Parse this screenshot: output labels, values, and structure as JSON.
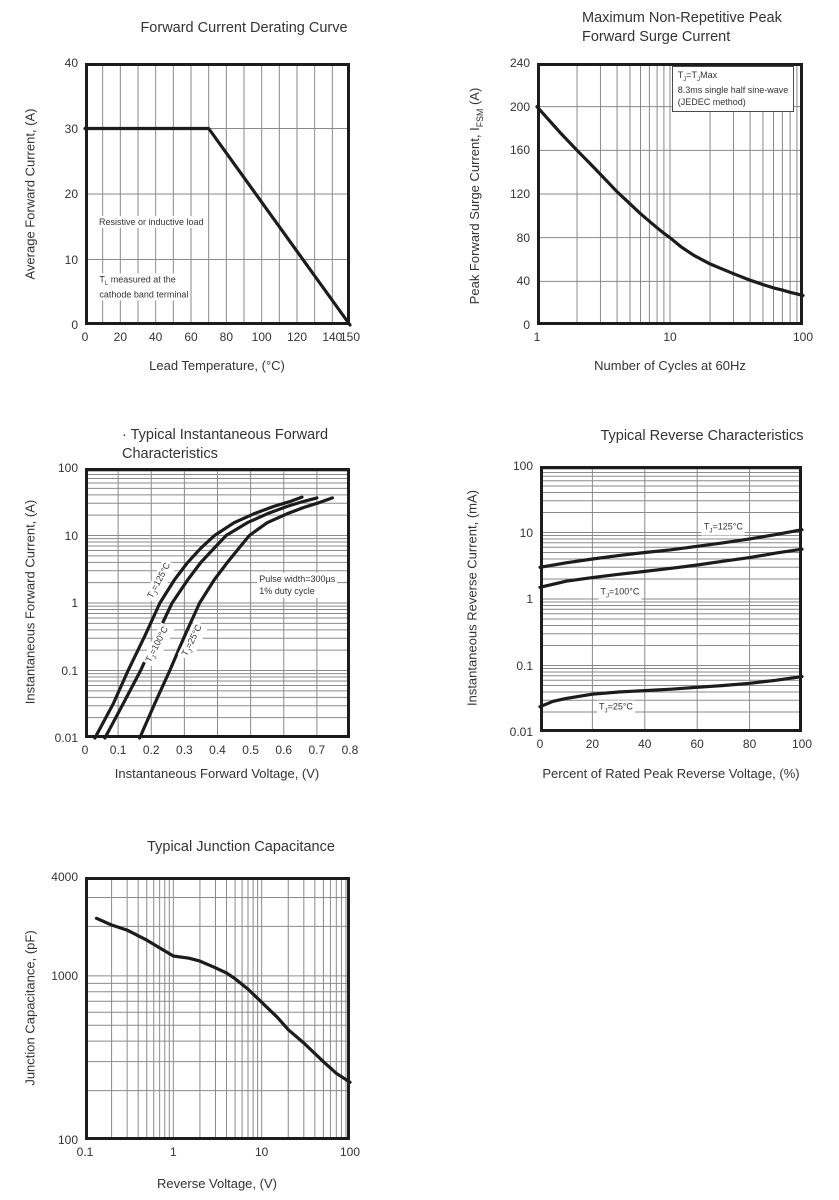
{
  "style": {
    "curve_color": "#1c1c1c",
    "border_color": "#1c1c1c",
    "grid_color": "#8a8a8a",
    "text_color": "#333333",
    "background": "#ffffff"
  },
  "chart_data": [
    {
      "type": "line",
      "title": "Forward Current Derating Curve",
      "xlabel": "Lead Temperature, (°C)",
      "ylabel": "Average Forward Current, (A)",
      "x_axis": {
        "type": "linear",
        "min": 0,
        "max": 150,
        "grid_step": 10,
        "ticks": [
          {
            "v": 0,
            "label": "0"
          },
          {
            "v": 20,
            "label": "20"
          },
          {
            "v": 40,
            "label": "40"
          },
          {
            "v": 60,
            "label": "60"
          },
          {
            "v": 80,
            "label": "80"
          },
          {
            "v": 100,
            "label": "100"
          },
          {
            "v": 120,
            "label": "120"
          },
          {
            "v": 140,
            "label": "140"
          },
          {
            "v": 150,
            "label": "150"
          }
        ]
      },
      "y_axis": {
        "type": "linear",
        "min": 0,
        "max": 40,
        "grid_step": 10,
        "ticks": [
          {
            "v": 40,
            "label": "40"
          },
          {
            "v": 30,
            "label": "30"
          },
          {
            "v": 20,
            "label": "20"
          },
          {
            "v": 10,
            "label": "10"
          },
          {
            "v": 0,
            "label": "0"
          }
        ]
      },
      "series": [
        {
          "name": "average-forward-current-vs-lead-temperature",
          "points": [
            [
              0,
              30
            ],
            [
              70,
              30
            ],
            [
              150,
              0
            ]
          ]
        }
      ],
      "annotations": [
        {
          "text": "Resistive or inductive load",
          "x": 6.8,
          "y": 15.7,
          "anchor": "lc"
        },
        {
          "text": "T_L_ measured at the\ncathode band terminal",
          "x": 7,
          "y": 5.8,
          "anchor": "lc"
        }
      ]
    },
    {
      "type": "line",
      "title": "Maximum Non-Repetitive Peak\nForward Surge Current",
      "xlabel": "Number of Cycles at 60Hz",
      "ylabel": "Peak Forward Surge Current, I_FSM_ (A)",
      "x_axis": {
        "type": "log",
        "min": 1,
        "max": 100,
        "ticks": [
          {
            "v": 1,
            "label": "1"
          },
          {
            "v": 10,
            "label": "10"
          },
          {
            "v": 100,
            "label": "100"
          }
        ]
      },
      "y_axis": {
        "type": "linear",
        "min": 0,
        "max": 240,
        "grid_step": 40,
        "ticks": [
          {
            "v": 240,
            "label": "240"
          },
          {
            "v": 200,
            "label": "200"
          },
          {
            "v": 160,
            "label": "160"
          },
          {
            "v": 120,
            "label": "120"
          },
          {
            "v": 80,
            "label": "80"
          },
          {
            "v": 40,
            "label": "40"
          },
          {
            "v": 0,
            "label": "0"
          }
        ]
      },
      "series": [
        {
          "name": "ifsm-vs-cycles",
          "points": [
            [
              1,
              200
            ],
            [
              1.5,
              176
            ],
            [
              2,
              160
            ],
            [
              2.5,
              148
            ],
            [
              3,
              138
            ],
            [
              4,
              122
            ],
            [
              5,
              111
            ],
            [
              6,
              102
            ],
            [
              7,
              95
            ],
            [
              8,
              89
            ],
            [
              9,
              84
            ],
            [
              10,
              80
            ],
            [
              12,
              72
            ],
            [
              15,
              64
            ],
            [
              20,
              56
            ],
            [
              25,
              51
            ],
            [
              30,
              47
            ],
            [
              40,
              41
            ],
            [
              50,
              37
            ],
            [
              60,
              34
            ],
            [
              70,
              32
            ],
            [
              80,
              30
            ],
            [
              90,
              28.5
            ],
            [
              100,
              27
            ]
          ]
        }
      ],
      "annotations": [
        {
          "text": "T_J_=T_J_Max\n8.3ms single half sine-wave\n(JEDEC method)",
          "x": 10.3,
          "y": 237.5,
          "anchor": "tl",
          "boxed": true
        }
      ]
    },
    {
      "type": "line",
      "title": "· Typical Instantaneous Forward\nCharacteristics",
      "xlabel": "Instantaneous Forward Voltage, (V)",
      "ylabel": "Instantaneous Forward Current, (A)",
      "x_axis": {
        "type": "linear",
        "min": 0,
        "max": 0.8,
        "grid_step": 0.1,
        "ticks": [
          {
            "v": 0,
            "label": "0"
          },
          {
            "v": 0.1,
            "label": "0.1"
          },
          {
            "v": 0.2,
            "label": "0.2"
          },
          {
            "v": 0.3,
            "label": "0.3"
          },
          {
            "v": 0.4,
            "label": "0.4"
          },
          {
            "v": 0.5,
            "label": "0.5"
          },
          {
            "v": 0.6,
            "label": "0.6"
          },
          {
            "v": 0.7,
            "label": "0.7"
          },
          {
            "v": 0.8,
            "label": "0.8"
          }
        ]
      },
      "y_axis": {
        "type": "log",
        "min": 0.01,
        "max": 100,
        "ticks": [
          {
            "v": 100,
            "label": "100"
          },
          {
            "v": 10,
            "label": "10"
          },
          {
            "v": 1,
            "label": "1"
          },
          {
            "v": 0.1,
            "label": "0.1"
          },
          {
            "v": 0.01,
            "label": "0.01"
          }
        ]
      },
      "series": [
        {
          "name": "tj-125c",
          "points": [
            [
              0.03,
              0.01
            ],
            [
              0.085,
              0.032
            ],
            [
              0.13,
              0.1
            ],
            [
              0.18,
              0.32
            ],
            [
              0.226,
              1
            ],
            [
              0.27,
              2.2
            ],
            [
              0.31,
              4
            ],
            [
              0.35,
              6.5
            ],
            [
              0.391,
              10
            ],
            [
              0.45,
              15.5
            ],
            [
              0.51,
              21
            ],
            [
              0.57,
              27
            ],
            [
              0.62,
              32
            ],
            [
              0.655,
              37
            ]
          ]
        },
        {
          "name": "tj-100c",
          "points": [
            [
              0.06,
              0.01
            ],
            [
              0.115,
              0.032
            ],
            [
              0.168,
              0.1
            ],
            [
              0.215,
              0.32
            ],
            [
              0.263,
              1
            ],
            [
              0.31,
              2.2
            ],
            [
              0.35,
              4
            ],
            [
              0.39,
              6.5
            ],
            [
              0.426,
              10
            ],
            [
              0.49,
              15.5
            ],
            [
              0.55,
              21
            ],
            [
              0.61,
              27
            ],
            [
              0.66,
              32
            ],
            [
              0.7,
              36
            ]
          ]
        },
        {
          "name": "tj-25c",
          "points": [
            [
              0.165,
              0.01
            ],
            [
              0.21,
              0.032
            ],
            [
              0.256,
              0.1
            ],
            [
              0.3,
              0.32
            ],
            [
              0.346,
              1
            ],
            [
              0.39,
              2.2
            ],
            [
              0.43,
              4
            ],
            [
              0.465,
              6.5
            ],
            [
              0.496,
              10
            ],
            [
              0.55,
              15.5
            ],
            [
              0.61,
              21
            ],
            [
              0.66,
              26
            ],
            [
              0.71,
              31
            ],
            [
              0.747,
              36
            ]
          ]
        }
      ],
      "annotations": [
        {
          "text": "T_J_=125°C",
          "x": 0.226,
          "y": 2.1,
          "anchor": "cc",
          "rotate": -62
        },
        {
          "text": "T_J_=100°C",
          "x": 0.22,
          "y": 0.24,
          "anchor": "cc",
          "rotate": -63
        },
        {
          "text": "T_J_=25°C",
          "x": 0.326,
          "y": 0.27,
          "anchor": "cc",
          "rotate": -63
        },
        {
          "text": "Pulse width=300µs\n1% duty cycle",
          "x": 0.52,
          "y": 1.83,
          "anchor": "lc"
        }
      ]
    },
    {
      "type": "line",
      "title": "Typical Reverse Characteristics",
      "xlabel": "Percent of Rated Peak Reverse Voltage, (%)",
      "ylabel": "Instantaneous Reverse Current, (mA)",
      "x_axis": {
        "type": "linear",
        "min": 0,
        "max": 100,
        "grid_step": 20,
        "ticks": [
          {
            "v": 0,
            "label": "0"
          },
          {
            "v": 20,
            "label": "20"
          },
          {
            "v": 40,
            "label": "40"
          },
          {
            "v": 60,
            "label": "60"
          },
          {
            "v": 80,
            "label": "80"
          },
          {
            "v": 100,
            "label": "100"
          }
        ]
      },
      "y_axis": {
        "type": "log",
        "min": 0.01,
        "max": 100,
        "ticks": [
          {
            "v": 100,
            "label": "100"
          },
          {
            "v": 10,
            "label": "10"
          },
          {
            "v": 1,
            "label": "1"
          },
          {
            "v": 0.1,
            "label": "0.1"
          },
          {
            "v": 0.01,
            "label": "0.01"
          }
        ]
      },
      "series": [
        {
          "name": "tj-125c",
          "points": [
            [
              0,
              3
            ],
            [
              10,
              3.5
            ],
            [
              20,
              4
            ],
            [
              30,
              4.5
            ],
            [
              40,
              5
            ],
            [
              50,
              5.5
            ],
            [
              60,
              6.2
            ],
            [
              70,
              7
            ],
            [
              80,
              8
            ],
            [
              90,
              9.3
            ],
            [
              100,
              11
            ]
          ]
        },
        {
          "name": "tj-100c",
          "points": [
            [
              0,
              1.5
            ],
            [
              10,
              1.85
            ],
            [
              20,
              2.1
            ],
            [
              30,
              2.35
            ],
            [
              40,
              2.6
            ],
            [
              50,
              2.9
            ],
            [
              60,
              3.25
            ],
            [
              70,
              3.7
            ],
            [
              80,
              4.2
            ],
            [
              90,
              4.9
            ],
            [
              100,
              5.6
            ]
          ]
        },
        {
          "name": "tj-25c",
          "points": [
            [
              0,
              0.024
            ],
            [
              5,
              0.029
            ],
            [
              10,
              0.032
            ],
            [
              20,
              0.037
            ],
            [
              30,
              0.04
            ],
            [
              40,
              0.042
            ],
            [
              50,
              0.044
            ],
            [
              60,
              0.047
            ],
            [
              70,
              0.05
            ],
            [
              80,
              0.054
            ],
            [
              90,
              0.06
            ],
            [
              100,
              0.068
            ]
          ]
        }
      ],
      "annotations": [
        {
          "text": "T_J_=125°C",
          "x": 70,
          "y": 11.8,
          "anchor": "cc"
        },
        {
          "text": "T_J_=100°C",
          "x": 30.5,
          "y": 1.21,
          "anchor": "cc"
        },
        {
          "text": "T_J_=25°C",
          "x": 29,
          "y": 0.023,
          "anchor": "cc"
        }
      ]
    },
    {
      "type": "line",
      "title": "Typical Junction Capacitance",
      "xlabel": "Reverse Voltage, (V)",
      "ylabel": "Junction Capacitance, (pF)",
      "x_axis": {
        "type": "log",
        "min": 0.1,
        "max": 100,
        "ticks": [
          {
            "v": 0.1,
            "label": "0.1"
          },
          {
            "v": 1,
            "label": "1"
          },
          {
            "v": 10,
            "label": "10"
          },
          {
            "v": 100,
            "label": "100"
          }
        ]
      },
      "y_axis": {
        "type": "log",
        "min": 100,
        "max": 4000,
        "ticks": [
          {
            "v": 4000,
            "label": "4000"
          },
          {
            "v": 1000,
            "label": "1000"
          },
          {
            "v": 100,
            "label": "100"
          }
        ]
      },
      "series": [
        {
          "name": "cj-vs-vr",
          "points": [
            [
              0.135,
              2240
            ],
            [
              0.2,
              2040
            ],
            [
              0.3,
              1900
            ],
            [
              0.5,
              1650
            ],
            [
              0.7,
              1480
            ],
            [
              1,
              1320
            ],
            [
              1.5,
              1280
            ],
            [
              2,
              1230
            ],
            [
              3,
              1120
            ],
            [
              4,
              1040
            ],
            [
              5,
              960
            ],
            [
              7,
              830
            ],
            [
              10,
              690
            ],
            [
              15,
              560
            ],
            [
              20,
              470
            ],
            [
              30,
              390
            ],
            [
              50,
              300
            ],
            [
              70,
              255
            ],
            [
              100,
              225
            ]
          ]
        }
      ],
      "annotations": []
    }
  ]
}
